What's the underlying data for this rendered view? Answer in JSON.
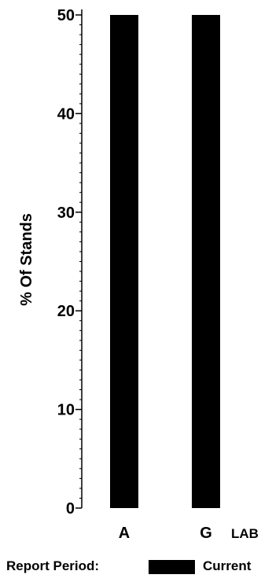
{
  "chart_data": {
    "type": "bar",
    "categories": [
      "A",
      "G"
    ],
    "series": [
      {
        "name": "Current",
        "values": [
          50,
          50
        ],
        "color": "#000000"
      }
    ],
    "title": "",
    "xlabel": "LAB",
    "ylabel": "% Of Stands",
    "ylim": [
      0,
      50
    ],
    "yticks": [
      0,
      10,
      20,
      30,
      40,
      50
    ],
    "minor_ticks_per_major": 10,
    "grid": false,
    "legend": {
      "title": "Report Period:",
      "placement": "bottom",
      "entries": [
        {
          "label": "Current",
          "color": "#000000"
        }
      ]
    }
  }
}
